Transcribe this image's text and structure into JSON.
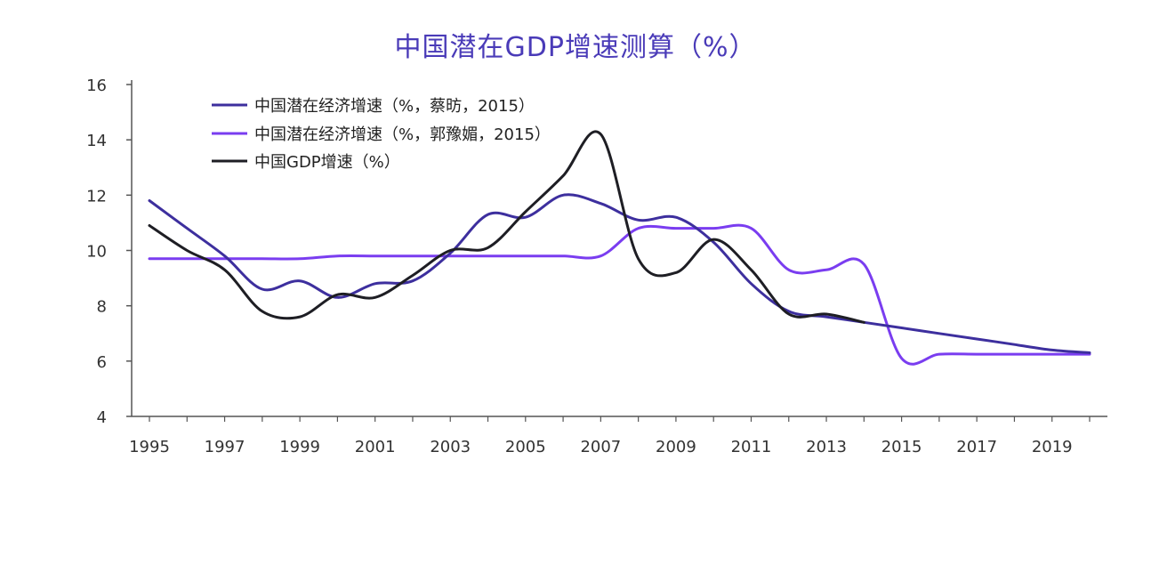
{
  "chart_data": {
    "type": "line",
    "title": "中国潜在GDP增速测算（%）",
    "xlabel": "",
    "ylabel": "",
    "xlim": [
      1995,
      2020
    ],
    "ylim": [
      4,
      16
    ],
    "yticks": [
      4,
      6,
      8,
      10,
      12,
      14,
      16
    ],
    "xticks": [
      1995,
      1997,
      1999,
      2001,
      2003,
      2005,
      2007,
      2009,
      2011,
      2013,
      2015,
      2017,
      2019
    ],
    "grid": false,
    "legend_position": "top-left",
    "x": [
      1995,
      1996,
      1997,
      1998,
      1999,
      2000,
      2001,
      2002,
      2003,
      2004,
      2005,
      2006,
      2007,
      2008,
      2009,
      2010,
      2011,
      2012,
      2013,
      2014,
      2015,
      2016,
      2017,
      2018,
      2019,
      2020
    ],
    "series": [
      {
        "name": "中国潜在经济增速（%，蔡昉，2015）",
        "color": "#3d2f9e",
        "values": [
          11.8,
          10.8,
          9.8,
          8.6,
          8.9,
          8.3,
          8.8,
          8.9,
          9.9,
          11.3,
          11.2,
          12.0,
          11.7,
          11.1,
          11.2,
          10.3,
          8.8,
          7.8,
          7.6,
          7.4,
          7.2,
          7.0,
          6.8,
          6.6,
          6.4,
          6.3
        ]
      },
      {
        "name": "中国潜在经济增速（%，郭豫媚，2015）",
        "color": "#7a3df0",
        "values": [
          9.7,
          9.7,
          9.7,
          9.7,
          9.7,
          9.8,
          9.8,
          9.8,
          9.8,
          9.8,
          9.8,
          9.8,
          9.8,
          10.8,
          10.8,
          10.8,
          10.8,
          9.3,
          9.3,
          9.5,
          6.1,
          6.25,
          6.25,
          6.25,
          6.25,
          6.25
        ]
      },
      {
        "name": "中国GDP增速（%）",
        "color": "#1e1e24",
        "values": [
          10.9,
          10.0,
          9.3,
          7.8,
          7.6,
          8.4,
          8.3,
          9.1,
          10.0,
          10.1,
          11.4,
          12.7,
          14.2,
          9.7,
          9.2,
          10.4,
          9.3,
          7.7,
          7.7,
          7.4,
          null,
          null,
          null,
          null,
          null,
          null
        ]
      }
    ]
  }
}
